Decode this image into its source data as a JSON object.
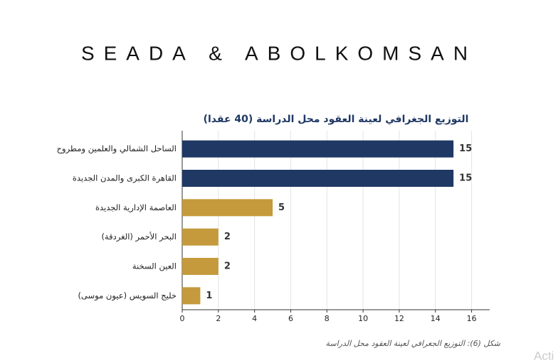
{
  "header": {
    "title": "SEADA & ABOLKOMSAN"
  },
  "chart_data": {
    "type": "barh",
    "title": "التوزيع الجغرافي لعينة العقود محل الدراسة (40 عقدا)",
    "categories": [
      "الساحل الشمالي والعلمين ومطروح",
      "القاهرة الكبرى والمدن الجديدة",
      "العاصمة الإدارية الجديدة",
      "البحر الأحمر (الغردقة)",
      "العين السخنة",
      "خليج السويس (عيون موسى)"
    ],
    "values": [
      15,
      15,
      5,
      2,
      2,
      1
    ],
    "colors": [
      "#1f3864",
      "#1f3864",
      "#c49a3c",
      "#c49a3c",
      "#c49a3c",
      "#c49a3c"
    ],
    "xlim": [
      0,
      17
    ],
    "xticks": [
      0,
      2,
      4,
      6,
      8,
      10,
      12,
      14,
      16
    ],
    "grid": true
  },
  "caption": "شكل (6): التوزيع الجغرافي لعينة العقود محل الدراسة",
  "watermark": "Acti"
}
